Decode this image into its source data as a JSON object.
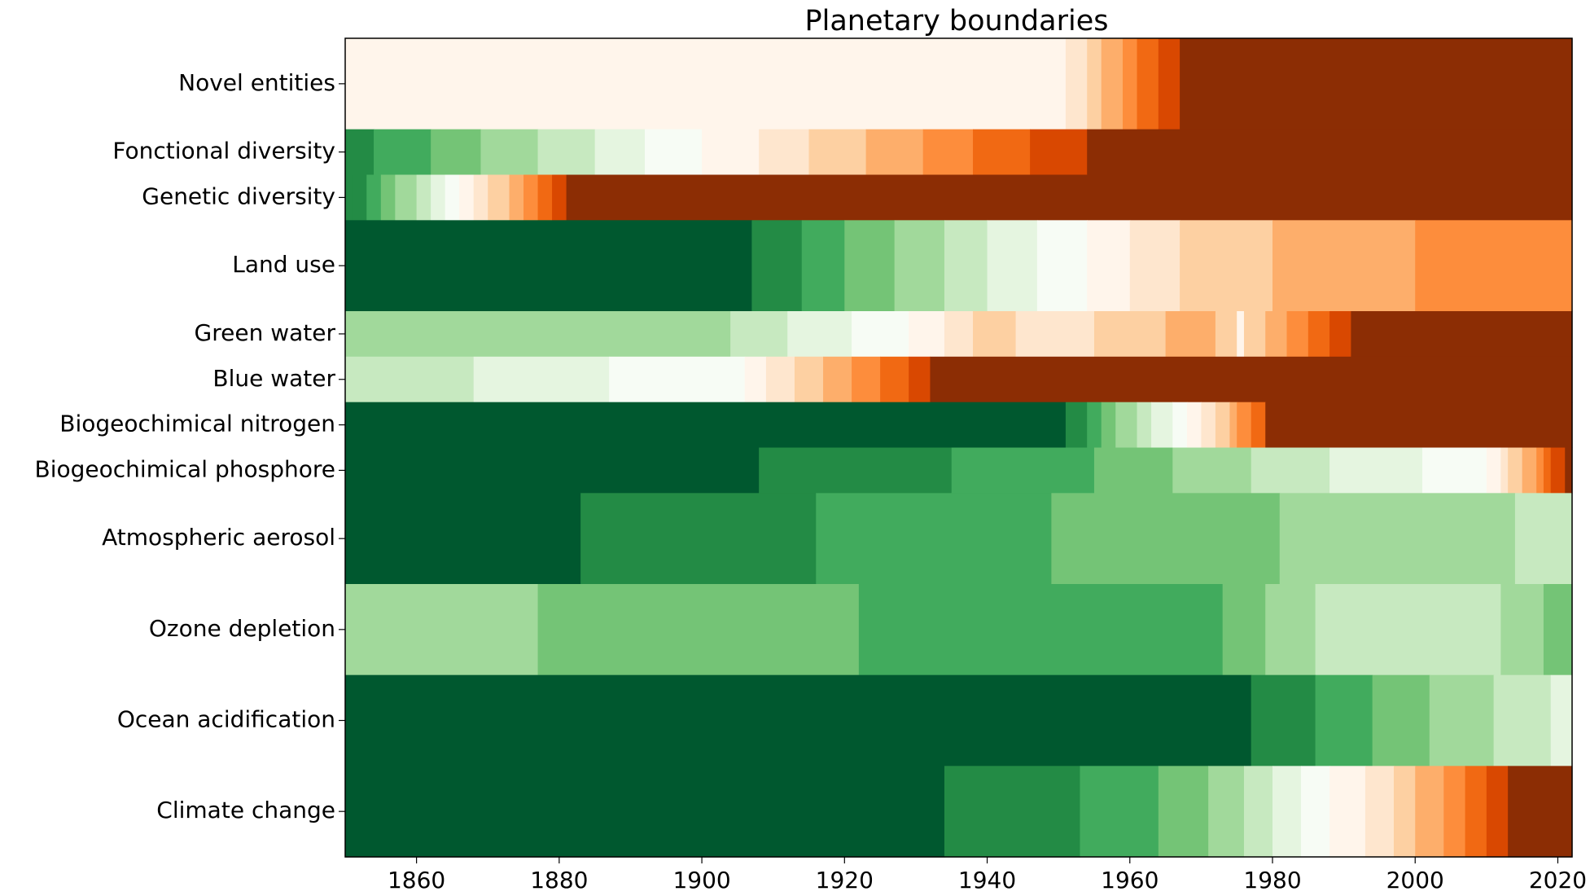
{
  "chart_data": {
    "type": "heatmap",
    "title": "Planetary boundaries",
    "xlabel": "",
    "ylabel": "",
    "xlim": [
      1850,
      2022
    ],
    "xticks": [
      1860,
      1880,
      1900,
      1920,
      1940,
      1960,
      1980,
      2000,
      2020
    ],
    "grid": false,
    "legend": "none",
    "colormap": "Greens_r to Oranges (safe to transgressed)",
    "palette": {
      "g8": "#00582f",
      "g7": "#238b45",
      "g6": "#41ab5d",
      "g5": "#74c476",
      "g4": "#a1d99b",
      "g3": "#c7e9c0",
      "g2": "#e5f5e0",
      "g1": "#f7fcf5",
      "o1": "#fff5eb",
      "o2": "#fee6ce",
      "o3": "#fdd0a2",
      "o4": "#fdae6b",
      "o5": "#fd8d3c",
      "o6": "#f16913",
      "o7": "#d94801",
      "o8": "#8c2d04"
    },
    "rows": [
      {
        "label": "Novel entities",
        "weight": 2.0,
        "segments": [
          [
            1850,
            1951,
            "o1"
          ],
          [
            1951,
            1954,
            "o2"
          ],
          [
            1954,
            1956,
            "o3"
          ],
          [
            1956,
            1959,
            "o4"
          ],
          [
            1959,
            1961,
            "o5"
          ],
          [
            1961,
            1964,
            "o6"
          ],
          [
            1964,
            1967,
            "o7"
          ],
          [
            1967,
            2022,
            "o8"
          ]
        ]
      },
      {
        "label": "Fonctional diversity",
        "weight": 1.0,
        "segments": [
          [
            1850,
            1854,
            "g7"
          ],
          [
            1854,
            1862,
            "g6"
          ],
          [
            1862,
            1869,
            "g5"
          ],
          [
            1869,
            1877,
            "g4"
          ],
          [
            1877,
            1885,
            "g3"
          ],
          [
            1885,
            1892,
            "g2"
          ],
          [
            1892,
            1900,
            "g1"
          ],
          [
            1900,
            1908,
            "o1"
          ],
          [
            1908,
            1915,
            "o2"
          ],
          [
            1915,
            1923,
            "o3"
          ],
          [
            1923,
            1931,
            "o4"
          ],
          [
            1931,
            1938,
            "o5"
          ],
          [
            1938,
            1946,
            "o6"
          ],
          [
            1946,
            1954,
            "o7"
          ],
          [
            1954,
            2022,
            "o8"
          ]
        ]
      },
      {
        "label": "Genetic diversity",
        "weight": 1.0,
        "segments": [
          [
            1850,
            1851,
            "g7"
          ],
          [
            1851,
            1853,
            "g7"
          ],
          [
            1853,
            1855,
            "g6"
          ],
          [
            1855,
            1857,
            "g5"
          ],
          [
            1857,
            1860,
            "g4"
          ],
          [
            1860,
            1862,
            "g3"
          ],
          [
            1862,
            1864,
            "g2"
          ],
          [
            1864,
            1866,
            "g1"
          ],
          [
            1866,
            1868,
            "o1"
          ],
          [
            1868,
            1870,
            "o2"
          ],
          [
            1870,
            1873,
            "o3"
          ],
          [
            1873,
            1875,
            "o4"
          ],
          [
            1875,
            1877,
            "o5"
          ],
          [
            1877,
            1879,
            "o6"
          ],
          [
            1879,
            1881,
            "o7"
          ],
          [
            1881,
            2022,
            "o8"
          ]
        ]
      },
      {
        "label": "Land use",
        "weight": 2.0,
        "segments": [
          [
            1850,
            1907,
            "g8"
          ],
          [
            1907,
            1914,
            "g7"
          ],
          [
            1914,
            1920,
            "g6"
          ],
          [
            1920,
            1927,
            "g5"
          ],
          [
            1927,
            1934,
            "g4"
          ],
          [
            1934,
            1940,
            "g3"
          ],
          [
            1940,
            1947,
            "g2"
          ],
          [
            1947,
            1954,
            "g1"
          ],
          [
            1954,
            1960,
            "o1"
          ],
          [
            1960,
            1967,
            "o2"
          ],
          [
            1967,
            1980,
            "o3"
          ],
          [
            1980,
            2000,
            "o4"
          ],
          [
            2000,
            2022,
            "o5"
          ]
        ]
      },
      {
        "label": "Green water",
        "weight": 1.0,
        "segments": [
          [
            1850,
            1904,
            "g4"
          ],
          [
            1904,
            1912,
            "g3"
          ],
          [
            1912,
            1921,
            "g2"
          ],
          [
            1921,
            1929,
            "g1"
          ],
          [
            1929,
            1934,
            "o1"
          ],
          [
            1934,
            1938,
            "o2"
          ],
          [
            1938,
            1944,
            "o3"
          ],
          [
            1944,
            1955,
            "o2"
          ],
          [
            1955,
            1965,
            "o3"
          ],
          [
            1965,
            1972,
            "o4"
          ],
          [
            1972,
            1975,
            "o3"
          ],
          [
            1975,
            1976,
            "o1"
          ],
          [
            1976,
            1979,
            "o3"
          ],
          [
            1979,
            1982,
            "o4"
          ],
          [
            1982,
            1985,
            "o5"
          ],
          [
            1985,
            1988,
            "o6"
          ],
          [
            1988,
            1991,
            "o7"
          ],
          [
            1991,
            2022,
            "o8"
          ]
        ]
      },
      {
        "label": "Blue water",
        "weight": 1.0,
        "segments": [
          [
            1850,
            1868,
            "g3"
          ],
          [
            1868,
            1887,
            "g2"
          ],
          [
            1887,
            1906,
            "g1"
          ],
          [
            1906,
            1909,
            "o1"
          ],
          [
            1909,
            1913,
            "o2"
          ],
          [
            1913,
            1917,
            "o3"
          ],
          [
            1917,
            1921,
            "o4"
          ],
          [
            1921,
            1925,
            "o5"
          ],
          [
            1925,
            1929,
            "o6"
          ],
          [
            1929,
            1932,
            "o7"
          ],
          [
            1932,
            2022,
            "o8"
          ]
        ]
      },
      {
        "label": "Biogeochimical nitrogen",
        "weight": 1.0,
        "segments": [
          [
            1850,
            1951,
            "g8"
          ],
          [
            1951,
            1954,
            "g7"
          ],
          [
            1954,
            1956,
            "g6"
          ],
          [
            1956,
            1958,
            "g5"
          ],
          [
            1958,
            1961,
            "g4"
          ],
          [
            1961,
            1963,
            "g3"
          ],
          [
            1963,
            1966,
            "g2"
          ],
          [
            1966,
            1968,
            "g1"
          ],
          [
            1968,
            1970,
            "o1"
          ],
          [
            1970,
            1972,
            "o2"
          ],
          [
            1972,
            1974,
            "o3"
          ],
          [
            1974,
            1975,
            "o4"
          ],
          [
            1975,
            1977,
            "o5"
          ],
          [
            1977,
            1979,
            "o6"
          ],
          [
            1979,
            2022,
            "o8"
          ]
        ]
      },
      {
        "label": "Biogeochimical phosphore",
        "weight": 1.0,
        "segments": [
          [
            1850,
            1908,
            "g8"
          ],
          [
            1908,
            1935,
            "g7"
          ],
          [
            1935,
            1955,
            "g6"
          ],
          [
            1955,
            1966,
            "g5"
          ],
          [
            1966,
            1977,
            "g4"
          ],
          [
            1977,
            1988,
            "g3"
          ],
          [
            1988,
            2001,
            "g2"
          ],
          [
            2001,
            2010,
            "g1"
          ],
          [
            2010,
            2012,
            "o1"
          ],
          [
            2012,
            2013,
            "o2"
          ],
          [
            2013,
            2015,
            "o3"
          ],
          [
            2015,
            2017,
            "o4"
          ],
          [
            2017,
            2018,
            "o5"
          ],
          [
            2018,
            2019,
            "o6"
          ],
          [
            2019,
            2021,
            "o7"
          ],
          [
            2021,
            2022,
            "o8"
          ]
        ]
      },
      {
        "label": "Atmospheric aerosol",
        "weight": 2.0,
        "segments": [
          [
            1850,
            1883,
            "g8"
          ],
          [
            1883,
            1916,
            "g7"
          ],
          [
            1916,
            1949,
            "g6"
          ],
          [
            1949,
            1981,
            "g5"
          ],
          [
            1981,
            2014,
            "g4"
          ],
          [
            2014,
            2022,
            "g3"
          ]
        ]
      },
      {
        "label": "Ozone depletion",
        "weight": 2.0,
        "segments": [
          [
            1850,
            1877,
            "g4"
          ],
          [
            1877,
            1922,
            "g5"
          ],
          [
            1922,
            1973,
            "g6"
          ],
          [
            1973,
            1979,
            "g5"
          ],
          [
            1979,
            1986,
            "g4"
          ],
          [
            1986,
            2012,
            "g3"
          ],
          [
            2012,
            2018,
            "g4"
          ],
          [
            2018,
            2022,
            "g5"
          ]
        ]
      },
      {
        "label": "Ocean acidification",
        "weight": 2.0,
        "segments": [
          [
            1850,
            1977,
            "g8"
          ],
          [
            1977,
            1986,
            "g7"
          ],
          [
            1986,
            1994,
            "g6"
          ],
          [
            1994,
            2002,
            "g5"
          ],
          [
            2002,
            2011,
            "g4"
          ],
          [
            2011,
            2019,
            "g3"
          ],
          [
            2019,
            2022,
            "g2"
          ]
        ]
      },
      {
        "label": "Climate change",
        "weight": 2.0,
        "segments": [
          [
            1850,
            1934,
            "g8"
          ],
          [
            1934,
            1953,
            "g7"
          ],
          [
            1953,
            1964,
            "g6"
          ],
          [
            1964,
            1971,
            "g5"
          ],
          [
            1971,
            1976,
            "g4"
          ],
          [
            1976,
            1980,
            "g3"
          ],
          [
            1980,
            1984,
            "g2"
          ],
          [
            1984,
            1988,
            "g1"
          ],
          [
            1988,
            1993,
            "o1"
          ],
          [
            1993,
            1997,
            "o2"
          ],
          [
            1997,
            2000,
            "o3"
          ],
          [
            2000,
            2004,
            "o4"
          ],
          [
            2004,
            2007,
            "o5"
          ],
          [
            2007,
            2010,
            "o6"
          ],
          [
            2010,
            2013,
            "o7"
          ],
          [
            2013,
            2022,
            "o8"
          ]
        ]
      }
    ]
  }
}
